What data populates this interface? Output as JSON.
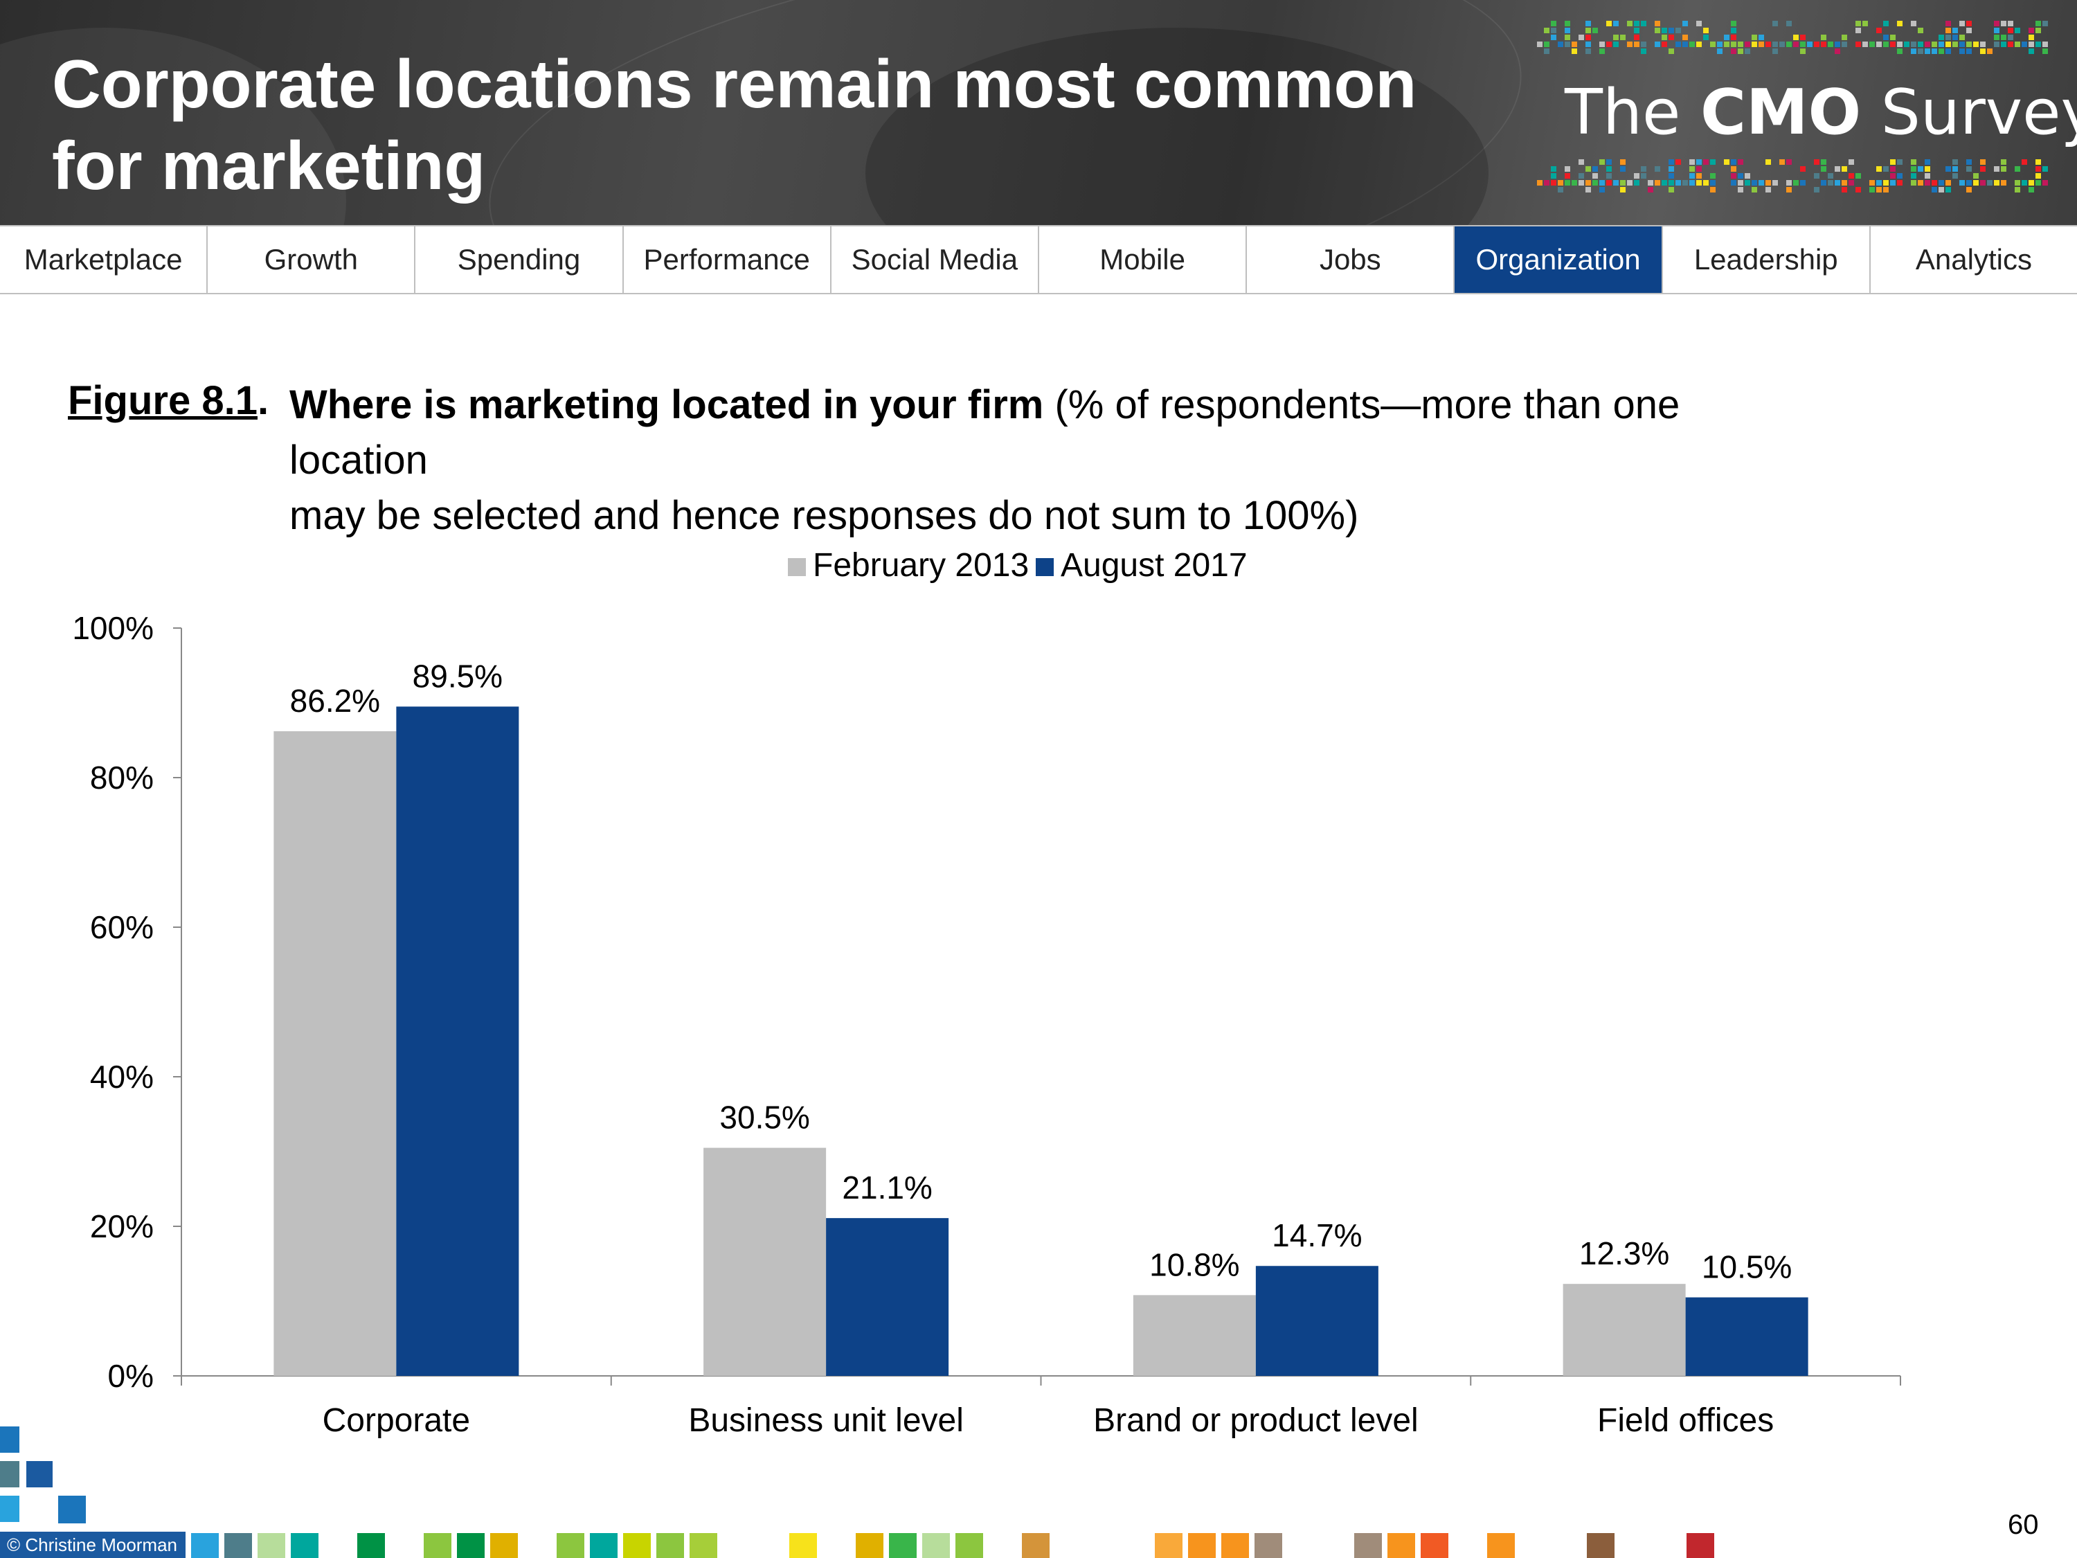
{
  "slide": {
    "title": "Corporate locations remain most common for marketing",
    "brand_light": "The ",
    "brand_bold": "CMO",
    "brand_light2": " Survey",
    "copyright": "© Christine Moorman",
    "page_number": "60"
  },
  "nav": {
    "tabs": [
      "Marketplace",
      "Growth",
      "Spending",
      "Performance",
      "Social Media",
      "Mobile",
      "Jobs",
      "Organization",
      "Leadership",
      "Analytics"
    ],
    "active": "Organization"
  },
  "figure": {
    "label": "Figure 8.1",
    "label_suffix": ".",
    "question": "Where is marketing located in your firm",
    "note_line1": " (% of respondents—more than one location",
    "note_line2": "may be selected and hence responses do not sum to 100%)"
  },
  "colors": {
    "series1": "#bfbfbf",
    "series2": "#0d4288",
    "nav_active": "#0d4288"
  },
  "chart_data": {
    "type": "bar",
    "categories": [
      "Corporate",
      "Business unit level",
      "Brand or product level",
      "Field offices"
    ],
    "series": [
      {
        "name": "February 2013",
        "values": [
          86.2,
          30.5,
          10.8,
          12.3
        ],
        "labels": [
          "86.2%",
          "30.5%",
          "10.8%",
          "12.3%"
        ]
      },
      {
        "name": "August 2017",
        "values": [
          89.5,
          21.1,
          14.7,
          10.5
        ],
        "labels": [
          "89.5%",
          "21.1%",
          "14.7%",
          "10.5%"
        ]
      }
    ],
    "ylim": [
      0,
      100
    ],
    "yticks": [
      0,
      20,
      40,
      60,
      80,
      100
    ],
    "ytick_labels": [
      "0%",
      "20%",
      "40%",
      "60%",
      "80%",
      "100%"
    ],
    "legend": "top-center",
    "grid": false
  }
}
